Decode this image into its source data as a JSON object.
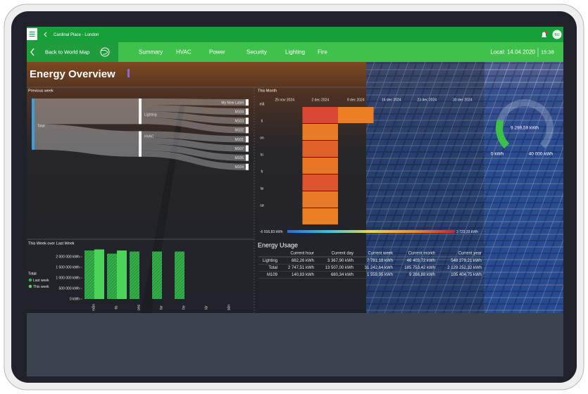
{
  "header": {
    "location": "Cardinal Place - London",
    "avatar": "BU"
  },
  "nav": {
    "back": "Back to World Map",
    "tabs": [
      "Summary",
      "HVAC",
      "Power",
      "Security",
      "Lighting",
      "Fire"
    ],
    "date": "Local: 14.04.2020",
    "time": "15:38"
  },
  "title": "Energy Overview",
  "sankey": {
    "type": "sankey",
    "title": "Previous week",
    "root": "Total",
    "groups": [
      {
        "name": "Lighting",
        "targets": [
          {
            "name": "My New Label",
            "value": 7
          },
          {
            "name": "M104",
            "value": 7
          },
          {
            "name": "M103",
            "value": 7
          },
          {
            "name": "M102",
            "value": 7
          }
        ]
      },
      {
        "name": "HVAC",
        "targets": [
          {
            "name": "M101",
            "value": 7
          },
          {
            "name": "M107",
            "value": 7
          },
          {
            "name": "M106",
            "value": 7
          },
          {
            "name": "M104",
            "value": 7
          }
        ]
      }
    ]
  },
  "heatmap": {
    "type": "heatmap",
    "title": "This Month",
    "x": [
      "25 nov 2024",
      "2 dec 2024",
      "9 dec 2024",
      "16 dec 2024",
      "23 dec 2024",
      "30 dec 2024"
    ],
    "y": [
      "må",
      "ti",
      "on",
      "to",
      "fr",
      "lø",
      "sø"
    ],
    "values": [
      [
        null,
        null,
        null,
        null,
        null,
        null,
        null
      ],
      [
        2800,
        1600,
        2200,
        1700,
        2500,
        1600,
        1500
      ],
      [
        1500,
        null,
        null,
        null,
        null,
        null,
        null
      ],
      [
        null,
        null,
        null,
        null,
        null,
        null,
        null
      ],
      [
        null,
        null,
        null,
        null,
        null,
        null,
        null
      ],
      [
        null,
        null,
        null,
        null,
        null,
        null,
        null
      ]
    ],
    "color_scale": {
      "min": {
        "value": -6916.83,
        "label": "-6 916,83 kWh"
      },
      "max": {
        "value": 3723.33,
        "label": "3 723,33 kWh"
      }
    },
    "colors": [
      "#2b6fd6",
      "#34c6e6",
      "#f0d83a",
      "#f0921e",
      "#cf1f3c"
    ]
  },
  "gauge": {
    "type": "gauge",
    "value": 9299.59,
    "value_label": "9 299,59 kWh",
    "min": {
      "value": 0,
      "label": "0 kWh"
    },
    "max": {
      "value": 40000,
      "label": "40 000 kWh"
    },
    "color": "#3cc04a"
  },
  "bar_chart": {
    "type": "bar",
    "title": "This Week over Last Week",
    "legend_title": "Total",
    "categories": [
      "mån",
      "tis",
      "ons",
      "tor",
      "fre",
      "lör",
      "sön"
    ],
    "series": [
      {
        "name": "Last week",
        "color": "#34b04a",
        "values": [
          2300000,
          2150000,
          2250000,
          2250000,
          2250000,
          null,
          null
        ]
      },
      {
        "name": "This week",
        "color": "#4cd35a",
        "values": [
          2350000,
          2300000,
          null,
          null,
          null,
          null,
          null
        ]
      }
    ],
    "ylim": [
      0,
      2500000
    ],
    "yticks": [
      {
        "value": 0,
        "label": "0 kWh"
      },
      {
        "value": 500000,
        "label": "500 000 kWh"
      },
      {
        "value": 1000000,
        "label": "1 000 000 kWh"
      },
      {
        "value": 1500000,
        "label": "1 500 000 kWh"
      },
      {
        "value": 2000000,
        "label": "2 000 000 kWh"
      }
    ]
  },
  "table": {
    "title": "Energy Usage",
    "columns": [
      "Current hour",
      "Current day",
      "Current week",
      "Current month",
      "Current year"
    ],
    "rows": [
      [
        "Lighting",
        "682,26 kWh",
        "3 367,90 kWh",
        "7 781,18 kWh",
        "46 403,72 kWh",
        "548 279,21 kWh"
      ],
      [
        "Total",
        "2 747,51 kWh",
        "13 507,00 kWh",
        "31 242,64 kWh",
        "185 753,42 kWh",
        "2 129 252,32 kWh"
      ],
      [
        "M109",
        "140,83 kWh",
        "680,34 kWh",
        "1 559,95 kWh",
        "9 266,88 kWh",
        "105 404,75 kWh"
      ]
    ]
  }
}
